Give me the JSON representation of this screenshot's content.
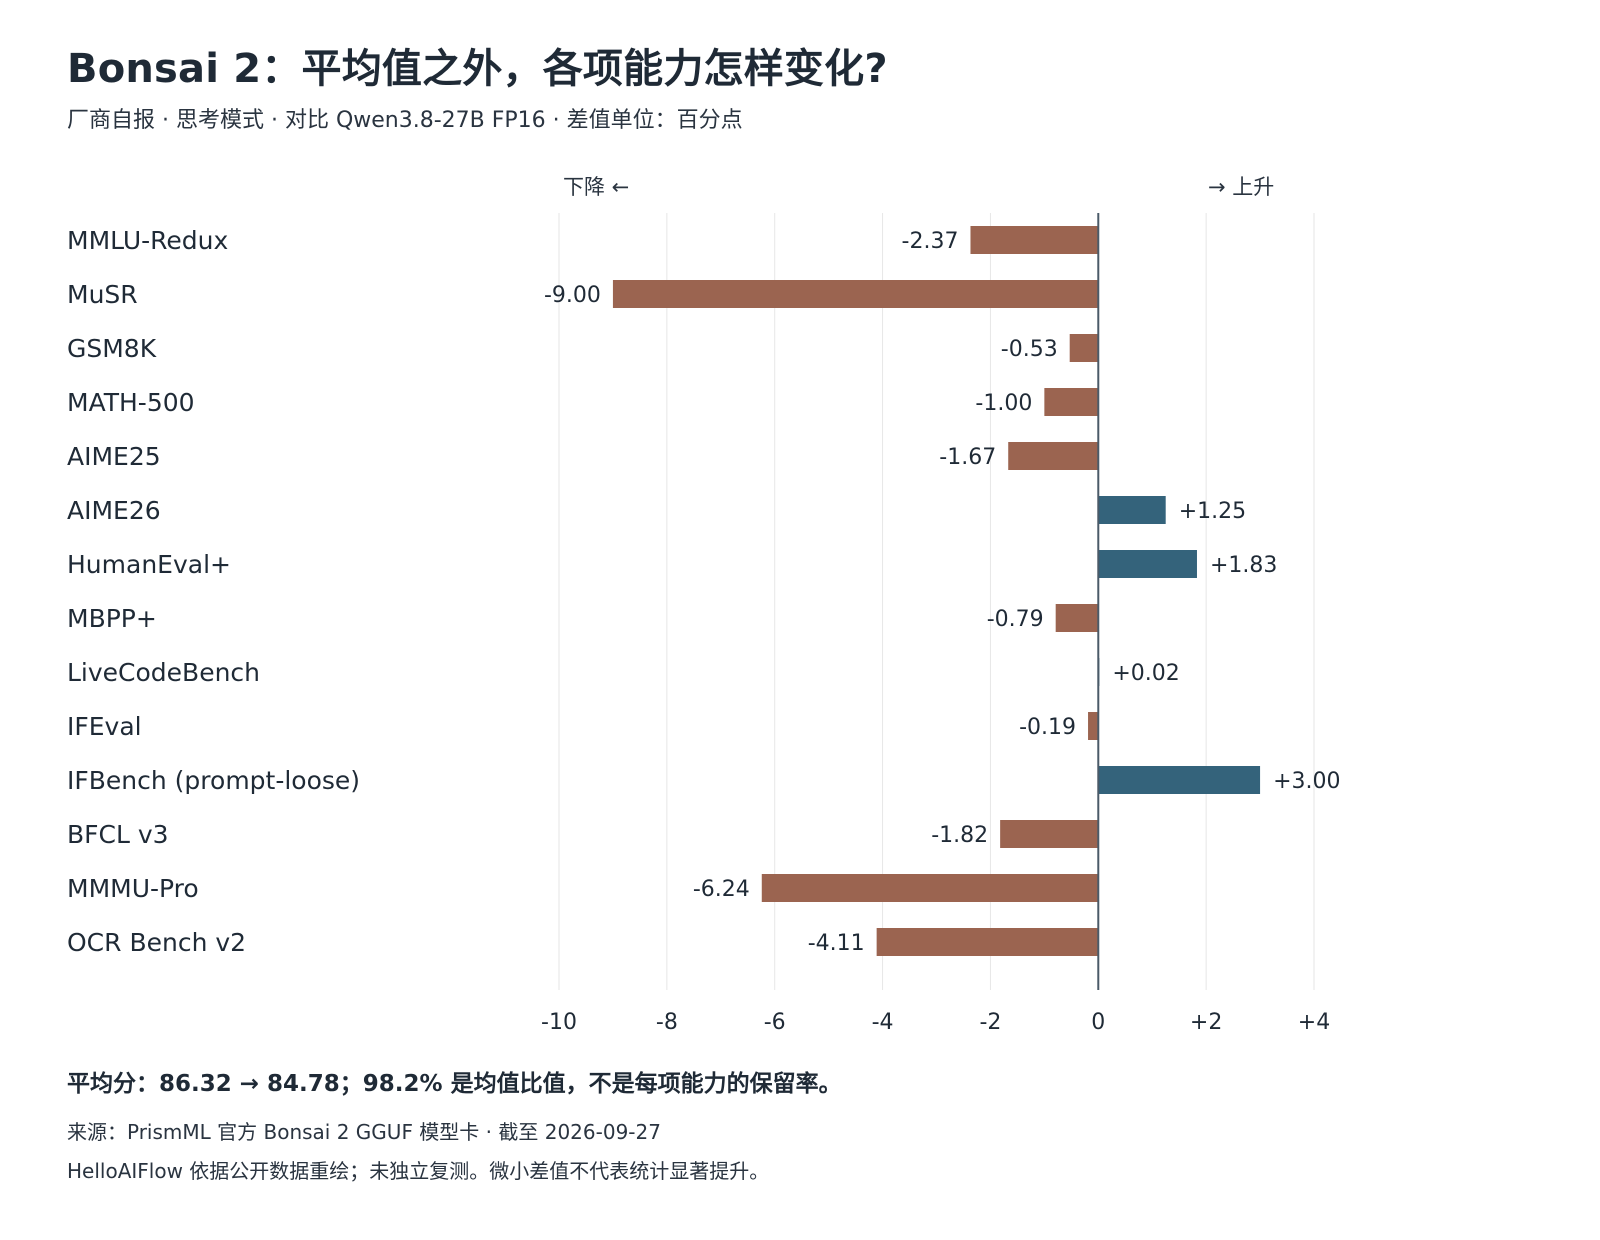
{
  "header": {
    "title": "Bonsai 2：平均值之外，各项能力怎样变化?",
    "subtitle": "厂商自报 · 思考模式 · 对比 Qwen3.8-27B FP16 · 差值单位：百分点"
  },
  "chart_data": {
    "type": "bar",
    "orientation": "horizontal",
    "direction_labels": {
      "left": "下降 ←",
      "right": "→ 上升"
    },
    "categories": [
      "MMLU-Redux",
      "MuSR",
      "GSM8K",
      "MATH-500",
      "AIME25",
      "AIME26",
      "HumanEval+",
      "MBPP+",
      "LiveCodeBench",
      "IFEval",
      "IFBench (prompt-loose)",
      "BFCL v3",
      "MMMU-Pro",
      "OCR Bench v2"
    ],
    "values": [
      -2.37,
      -9.0,
      -0.53,
      -1.0,
      -1.67,
      1.25,
      1.83,
      -0.79,
      0.02,
      -0.19,
      3.0,
      -1.82,
      -6.24,
      -4.11
    ],
    "value_labels": [
      "-2.37",
      "-9.00",
      "-0.53",
      "-1.00",
      "-1.67",
      "+1.25",
      "+1.83",
      "-0.79",
      "+0.02",
      "-0.19",
      "+3.00",
      "-1.82",
      "-6.24",
      "-4.11"
    ],
    "xlim": [
      -10,
      4
    ],
    "x_ticks": [
      -10,
      -8,
      -6,
      -4,
      -2,
      0,
      2,
      4
    ],
    "x_tick_labels": [
      "-10",
      "-8",
      "-6",
      "-4",
      "-2",
      "0",
      "+2",
      "+4"
    ],
    "grid": "vertical",
    "colors": {
      "negative": "#9b6450",
      "positive": "#34637b",
      "zero_line": "#4a5a68",
      "grid": "#e6e6e6"
    }
  },
  "footer": {
    "summary": "平均分：86.32 → 84.78；98.2% 是均值比值，不是每项能力的保留率。",
    "source": "来源：PrismML 官方 Bonsai 2 GGUF 模型卡 · 截至 2026-09-27",
    "note": "HelloAIFlow 依据公开数据重绘；未独立复测。微小差值不代表统计显著提升。"
  }
}
